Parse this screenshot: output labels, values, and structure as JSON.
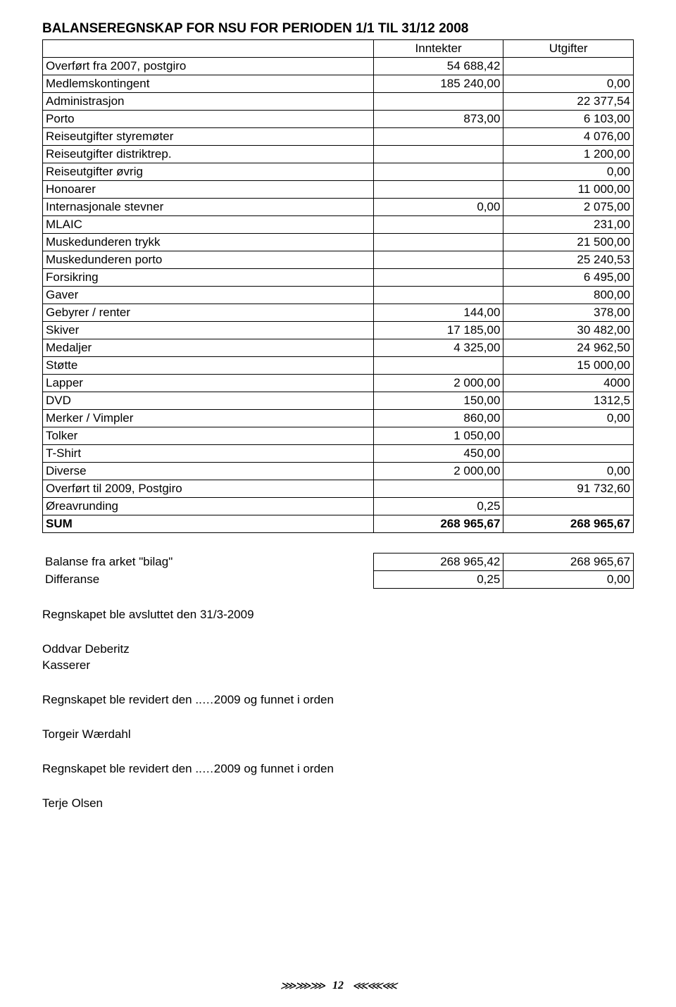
{
  "title": "BALANSEREGNSKAP FOR NSU FOR PERIODEN 1/1 TIL 31/12 2008",
  "headers": {
    "income": "Inntekter",
    "expense": "Utgifter"
  },
  "rows": [
    {
      "label": "Overført fra 2007, postgiro",
      "income": "54 688,42",
      "expense": ""
    },
    {
      "label": "Medlemskontingent",
      "income": "185 240,00",
      "expense": "0,00"
    },
    {
      "label": "Administrasjon",
      "income": "",
      "expense": "22 377,54"
    },
    {
      "label": "Porto",
      "income": "873,00",
      "expense": "6 103,00"
    },
    {
      "label": "Reiseutgifter styremøter",
      "income": "",
      "expense": "4 076,00"
    },
    {
      "label": "Reiseutgifter distriktrep.",
      "income": "",
      "expense": "1 200,00"
    },
    {
      "label": "Reiseutgifter øvrig",
      "income": "",
      "expense": "0,00"
    },
    {
      "label": "Honoarer",
      "income": "",
      "expense": "11 000,00"
    },
    {
      "label": "Internasjonale stevner",
      "income": "0,00",
      "expense": "2 075,00"
    },
    {
      "label": "MLAIC",
      "income": "",
      "expense": "231,00"
    },
    {
      "label": "Muskedunderen trykk",
      "income": "",
      "expense": "21 500,00"
    },
    {
      "label": "Muskedunderen porto",
      "income": "",
      "expense": "25 240,53"
    },
    {
      "label": "Forsikring",
      "income": "",
      "expense": "6 495,00"
    },
    {
      "label": "Gaver",
      "income": "",
      "expense": "800,00"
    },
    {
      "label": "Gebyrer / renter",
      "income": "144,00",
      "expense": "378,00"
    },
    {
      "label": "Skiver",
      "income": "17 185,00",
      "expense": "30 482,00"
    },
    {
      "label": "Medaljer",
      "income": "4 325,00",
      "expense": "24 962,50"
    },
    {
      "label": "Støtte",
      "income": "",
      "expense": "15 000,00"
    },
    {
      "label": "Lapper",
      "income": "2 000,00",
      "expense": "4000"
    },
    {
      "label": "DVD",
      "income": "150,00",
      "expense": "1312,5"
    },
    {
      "label": "Merker / Vimpler",
      "income": "860,00",
      "expense": "0,00"
    },
    {
      "label": "Tolker",
      "income": "1 050,00",
      "expense": ""
    },
    {
      "label": "T-Shirt",
      "income": "450,00",
      "expense": ""
    },
    {
      "label": "Diverse",
      "income": "2 000,00",
      "expense": "0,00"
    },
    {
      "label": "Overført til 2009, Postgiro",
      "income": "",
      "expense": "91 732,60"
    },
    {
      "label": "Øreavrunding",
      "income": "0,25",
      "expense": ""
    }
  ],
  "sum": {
    "label": "SUM",
    "income": "268 965,67",
    "expense": "268 965,67"
  },
  "balance": {
    "row1": {
      "label": "Balanse fra arket \"bilag\"",
      "income": "268 965,42",
      "expense": "268 965,67"
    },
    "row2": {
      "label": "Differanse",
      "income": "0,25",
      "expense": "0,00"
    }
  },
  "text": {
    "closed": "Regnskapet ble avsluttet den 31/3-2009",
    "name1": "Oddvar Deberitz",
    "role1": "Kasserer",
    "rev1": "Regnskapet ble revidert den ..…2009 og funnet i orden",
    "name2": "Torgeir Wærdahl",
    "rev2": "Regnskapet ble revidert den ..…2009 og funnet i orden",
    "name3": "Terje Olsen"
  },
  "footer": {
    "ornament": "⋙⋙⋙",
    "ornament_right": "⋘⋘⋘",
    "page": "12"
  }
}
